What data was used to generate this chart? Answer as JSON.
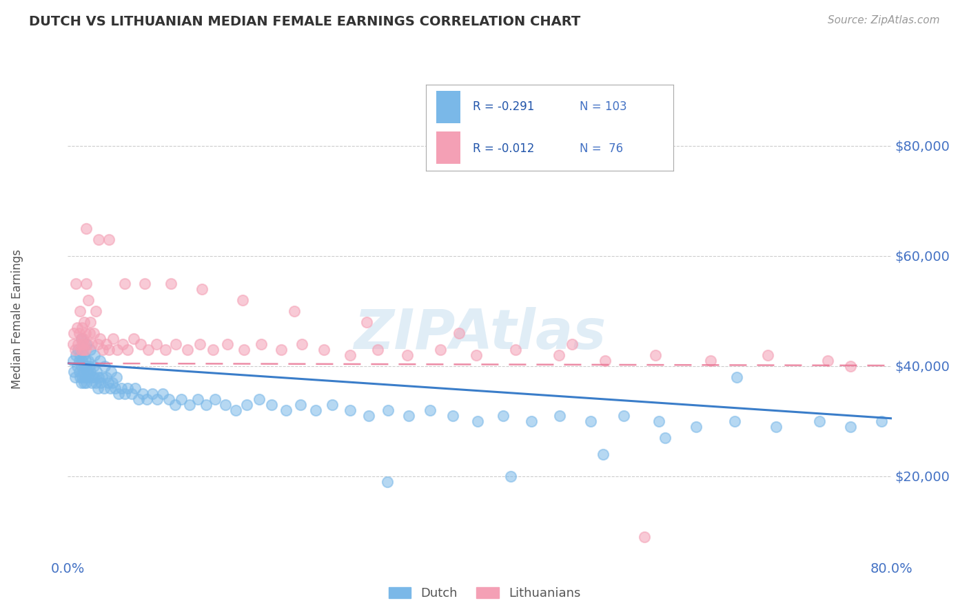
{
  "title": "DUTCH VS LITHUANIAN MEDIAN FEMALE EARNINGS CORRELATION CHART",
  "source": "Source: ZipAtlas.com",
  "ylabel": "Median Female Earnings",
  "xlim": [
    0.0,
    0.8
  ],
  "ylim": [
    5000,
    92000
  ],
  "yticks": [
    20000,
    40000,
    60000,
    80000
  ],
  "ytick_labels": [
    "$20,000",
    "$40,000",
    "$60,000",
    "$80,000"
  ],
  "xticks": [
    0.0,
    0.8
  ],
  "xtick_labels": [
    "0.0%",
    "80.0%"
  ],
  "dutch_R": -0.291,
  "dutch_N": 103,
  "lithuanian_R": -0.012,
  "lithuanian_N": 76,
  "dutch_color": "#7ab8e8",
  "lithuanian_color": "#f4a0b5",
  "dutch_line_color": "#3a7dc9",
  "lithuanian_line_color": "#e87090",
  "background_color": "#ffffff",
  "grid_color": "#cccccc",
  "title_color": "#333333",
  "axis_label_color": "#555555",
  "tick_label_color": "#4472c4",
  "watermark": "ZIPAtlas",
  "legend_labels": [
    "Dutch",
    "Lithuanians"
  ],
  "dutch_x": [
    0.005,
    0.006,
    0.007,
    0.008,
    0.009,
    0.01,
    0.011,
    0.011,
    0.012,
    0.012,
    0.013,
    0.013,
    0.014,
    0.014,
    0.015,
    0.015,
    0.016,
    0.016,
    0.017,
    0.017,
    0.018,
    0.018,
    0.019,
    0.02,
    0.02,
    0.021,
    0.022,
    0.023,
    0.024,
    0.025,
    0.026,
    0.027,
    0.028,
    0.029,
    0.03,
    0.032,
    0.033,
    0.035,
    0.037,
    0.039,
    0.041,
    0.043,
    0.046,
    0.049,
    0.052,
    0.055,
    0.058,
    0.062,
    0.065,
    0.069,
    0.073,
    0.077,
    0.082,
    0.087,
    0.092,
    0.098,
    0.104,
    0.11,
    0.118,
    0.126,
    0.134,
    0.143,
    0.153,
    0.163,
    0.174,
    0.186,
    0.198,
    0.212,
    0.226,
    0.241,
    0.257,
    0.274,
    0.292,
    0.311,
    0.331,
    0.352,
    0.374,
    0.398,
    0.423,
    0.45,
    0.478,
    0.508,
    0.54,
    0.574,
    0.61,
    0.648,
    0.688,
    0.73,
    0.76,
    0.79,
    0.013,
    0.018,
    0.022,
    0.026,
    0.031,
    0.036,
    0.042,
    0.047,
    0.31,
    0.65,
    0.43,
    0.52,
    0.58
  ],
  "dutch_y": [
    41000,
    39000,
    38000,
    42000,
    40000,
    43000,
    41000,
    39000,
    42000,
    38000,
    40000,
    37000,
    41000,
    38000,
    42000,
    39000,
    40000,
    37000,
    41000,
    38000,
    40000,
    37000,
    39000,
    41000,
    38000,
    40000,
    39000,
    37000,
    38000,
    40000,
    38000,
    37000,
    39000,
    36000,
    38000,
    37000,
    38000,
    36000,
    38000,
    37000,
    36000,
    37000,
    36000,
    35000,
    36000,
    35000,
    36000,
    35000,
    36000,
    34000,
    35000,
    34000,
    35000,
    34000,
    35000,
    34000,
    33000,
    34000,
    33000,
    34000,
    33000,
    34000,
    33000,
    32000,
    33000,
    34000,
    33000,
    32000,
    33000,
    32000,
    33000,
    32000,
    31000,
    32000,
    31000,
    32000,
    31000,
    30000,
    31000,
    30000,
    31000,
    30000,
    31000,
    30000,
    29000,
    30000,
    29000,
    30000,
    29000,
    30000,
    45000,
    44000,
    43000,
    42000,
    41000,
    40000,
    39000,
    38000,
    19000,
    38000,
    20000,
    24000,
    27000
  ],
  "lithuanian_x": [
    0.005,
    0.006,
    0.007,
    0.008,
    0.009,
    0.01,
    0.011,
    0.012,
    0.013,
    0.013,
    0.014,
    0.014,
    0.015,
    0.015,
    0.016,
    0.016,
    0.017,
    0.017,
    0.018,
    0.019,
    0.02,
    0.021,
    0.022,
    0.023,
    0.025,
    0.027,
    0.029,
    0.031,
    0.034,
    0.037,
    0.04,
    0.044,
    0.048,
    0.053,
    0.058,
    0.064,
    0.071,
    0.078,
    0.086,
    0.095,
    0.105,
    0.116,
    0.128,
    0.141,
    0.155,
    0.171,
    0.188,
    0.207,
    0.227,
    0.249,
    0.274,
    0.301,
    0.33,
    0.362,
    0.397,
    0.435,
    0.477,
    0.522,
    0.571,
    0.624,
    0.68,
    0.738,
    0.76,
    0.018,
    0.03,
    0.04,
    0.055,
    0.075,
    0.1,
    0.13,
    0.17,
    0.22,
    0.29,
    0.38,
    0.49,
    0.56
  ],
  "lithuanian_y": [
    44000,
    46000,
    43000,
    55000,
    47000,
    44000,
    46000,
    50000,
    45000,
    43000,
    47000,
    44000,
    45000,
    43000,
    48000,
    44000,
    46000,
    43000,
    55000,
    44000,
    52000,
    46000,
    48000,
    44000,
    46000,
    50000,
    44000,
    45000,
    43000,
    44000,
    43000,
    45000,
    43000,
    44000,
    43000,
    45000,
    44000,
    43000,
    44000,
    43000,
    44000,
    43000,
    44000,
    43000,
    44000,
    43000,
    44000,
    43000,
    44000,
    43000,
    42000,
    43000,
    42000,
    43000,
    42000,
    43000,
    42000,
    41000,
    42000,
    41000,
    42000,
    41000,
    40000,
    65000,
    63000,
    63000,
    55000,
    55000,
    55000,
    54000,
    52000,
    50000,
    48000,
    46000,
    44000,
    9000
  ]
}
